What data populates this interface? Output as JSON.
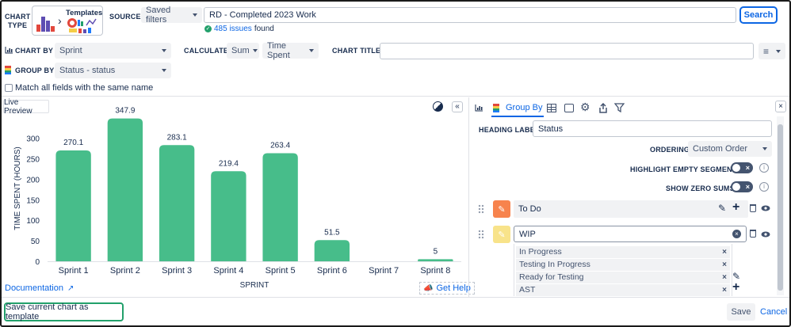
{
  "header": {
    "chart_type_label": "CHART TYPE",
    "templates_label": "Templates",
    "source_label": "SOURCE",
    "saved_filters": "Saved filters",
    "source_value": "RD - Completed 2023 Work",
    "search_button": "Search",
    "issues_count": "485 issues",
    "issues_suffix": "found"
  },
  "config": {
    "chart_by_label": "CHART BY",
    "chart_by_value": "Sprint",
    "calculate_label": "CALCULATE",
    "calc_fn": "Sum",
    "calc_field": "Time Spent",
    "chart_title_label": "CHART TITLE",
    "chart_title_value": "",
    "group_by_label": "GROUP BY",
    "group_by_value": "Status - status",
    "match_all_label": "Match all fields with the same name"
  },
  "preview": {
    "live_preview": "Live Preview",
    "documentation": "Documentation",
    "get_help": "Get Help"
  },
  "chart_data": {
    "type": "bar",
    "categories": [
      "Sprint 1",
      "Sprint 2",
      "Sprint 3",
      "Sprint 4",
      "Sprint 5",
      "Sprint 6",
      "Sprint 7",
      "Sprint 8"
    ],
    "values": [
      270.1,
      347.9,
      283.1,
      219.4,
      263.4,
      51.5,
      0,
      5
    ],
    "value_labels": [
      "270.1",
      "347.9",
      "283.1",
      "219.4",
      "263.4",
      "51.5",
      "",
      "5"
    ],
    "xlabel": "SPRINT",
    "ylabel": "TIME SPENT (HOURS)",
    "yticks": [
      0,
      50,
      100,
      150,
      200,
      250,
      300
    ],
    "ylim": [
      0,
      355
    ],
    "grid": false,
    "color": "#47bd8a"
  },
  "panel": {
    "tab_group_by": "Group By",
    "heading_label": "HEADING LABEL",
    "heading_value": "Status",
    "ordering_label": "ORDERING",
    "ordering_value": "Custom Order",
    "highlight_label": "HIGHLIGHT EMPTY SEGMENTS",
    "zero_sums_label": "SHOW ZERO SUMS",
    "groups": [
      {
        "name": "To Do",
        "color": "#f7834d"
      },
      {
        "name": "WIP",
        "color": "#f8e38a"
      }
    ],
    "wip_items": [
      "In Progress",
      "Testing In Progress",
      "Ready for Testing",
      "AST"
    ]
  },
  "footer": {
    "save_template": "Save current chart as template",
    "save": "Save",
    "cancel": "Cancel"
  }
}
